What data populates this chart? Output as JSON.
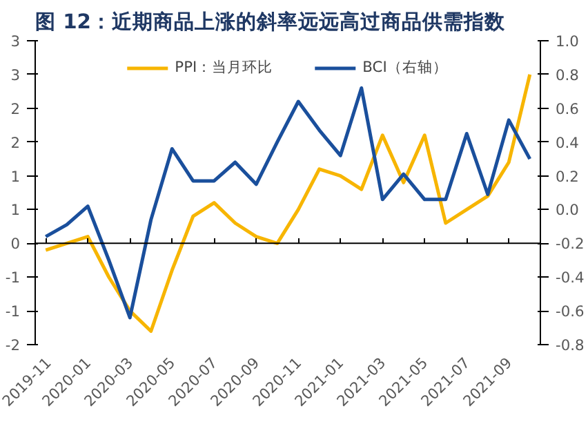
{
  "chart_data": {
    "type": "line",
    "title": "图 12：近期商品上涨的斜率远远高过商品供需指数",
    "categories": [
      "2019-11",
      null,
      "2020-01",
      null,
      "2020-03",
      null,
      "2020-05",
      null,
      "2020-07",
      null,
      "2020-09",
      null,
      "2020-11",
      null,
      "2021-01",
      null,
      "2021-03",
      null,
      "2021-05",
      null,
      "2021-07",
      null,
      "2021-09",
      null
    ],
    "series": [
      {
        "name": "PPI：当月环比",
        "color": "#f7b500",
        "values": [
          -0.1,
          0.0,
          0.1,
          -0.5,
          -1.0,
          -1.3,
          -0.4,
          0.4,
          0.6,
          0.3,
          0.1,
          0.0,
          0.5,
          1.1,
          1.0,
          0.8,
          1.6,
          0.9,
          1.6,
          0.3,
          0.5,
          0.7,
          1.2,
          2.5
        ]
      },
      {
        "name": "BCI（右轴）",
        "color": "#1a4f9c",
        "axis": "y2",
        "values": [
          -0.16,
          -0.09,
          0.02,
          -0.3,
          -0.64,
          -0.06,
          0.36,
          0.17,
          0.17,
          0.28,
          0.15,
          0.4,
          0.64,
          0.47,
          0.32,
          0.72,
          0.06,
          0.21,
          0.06,
          0.06,
          0.45,
          0.09,
          0.53,
          0.3
        ]
      }
    ],
    "ylim": [
      -1.5,
      3
    ],
    "yticks": [
      {
        "value": -1.5,
        "label": "-2"
      },
      {
        "value": -1,
        "label": "-1"
      },
      {
        "value": -0.5,
        "label": "-1"
      },
      0,
      {
        "value": 0.5,
        "label": "1"
      },
      1,
      {
        "value": 1.5,
        "label": "2"
      },
      2,
      {
        "value": 2.5,
        "label": "3"
      },
      3
    ],
    "y2lim": [
      -0.8,
      1.0
    ],
    "y2ticks": [
      {
        "value": -0.8,
        "label": "-0.8"
      },
      {
        "value": -0.6,
        "label": "-0.6"
      },
      {
        "value": -0.4,
        "label": "-0.4"
      },
      {
        "value": -0.2,
        "label": "-0.2"
      },
      {
        "value": 0,
        "label": "0.0"
      },
      {
        "value": 0.2,
        "label": "0.2"
      },
      {
        "value": 0.4,
        "label": "0.4"
      },
      {
        "value": 0.6,
        "label": "0.6"
      },
      {
        "value": 0.8,
        "label": "0.8"
      },
      {
        "value": 1.0,
        "label": "1.0"
      }
    ],
    "ref_lines": [
      {
        "axis": "y",
        "value": 0,
        "color": "#000000"
      }
    ],
    "legend": "top",
    "grid": false,
    "marker": "none",
    "line_style": "solid"
  }
}
